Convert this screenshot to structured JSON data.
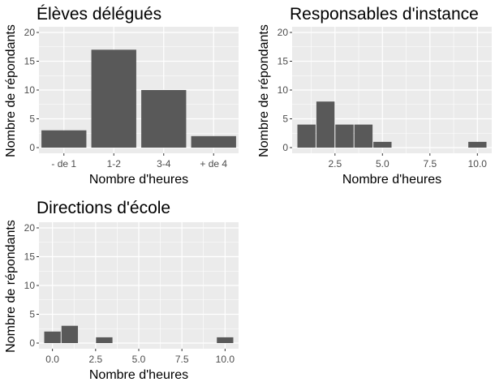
{
  "figure": {
    "panel_background": "#ebebeb",
    "gridline_color": "#ffffff",
    "bar_color": "#595959",
    "tick_label_color": "#4d4d4d"
  },
  "chart_data": [
    {
      "type": "bar",
      "title": "Élèves délégués",
      "xlabel": "Nombre d'heures",
      "ylabel": "Nombre de répondants",
      "categories": [
        "- de 1",
        "1-2",
        "3-4",
        "+ de 4"
      ],
      "values": [
        3,
        17,
        10,
        2
      ],
      "ylim": [
        0,
        20
      ],
      "yticks": [
        0,
        5,
        10,
        15,
        20
      ],
      "grid": true
    },
    {
      "type": "bar",
      "title": "Responsables d'instance",
      "xlabel": "Nombre d'heures",
      "ylabel": "Nombre de répondants",
      "bins": [
        {
          "x": 1,
          "count": 4
        },
        {
          "x": 2,
          "count": 8
        },
        {
          "x": 3,
          "count": 4
        },
        {
          "x": 4,
          "count": 4
        },
        {
          "x": 5,
          "count": 1
        },
        {
          "x": 6,
          "count": 0
        },
        {
          "x": 7,
          "count": 0
        },
        {
          "x": 8,
          "count": 0
        },
        {
          "x": 9,
          "count": 0
        },
        {
          "x": 10,
          "count": 1
        }
      ],
      "bin_width": 1,
      "xlim": [
        0.5,
        10.5
      ],
      "xticks": [
        2.5,
        5.0,
        7.5,
        10.0
      ],
      "xtick_labels": [
        "2.5",
        "5.0",
        "7.5",
        "10.0"
      ],
      "ylim": [
        0,
        20
      ],
      "yticks": [
        0,
        5,
        10,
        15,
        20
      ],
      "grid": true
    },
    {
      "type": "bar",
      "title": "Directions d'école",
      "xlabel": "Nombre d'heures",
      "ylabel": "Nombre de répondants",
      "bins": [
        {
          "x": 0,
          "count": 2
        },
        {
          "x": 1,
          "count": 3
        },
        {
          "x": 2,
          "count": 0
        },
        {
          "x": 3,
          "count": 1
        },
        {
          "x": 4,
          "count": 0
        },
        {
          "x": 5,
          "count": 0
        },
        {
          "x": 6,
          "count": 0
        },
        {
          "x": 7,
          "count": 0
        },
        {
          "x": 8,
          "count": 0
        },
        {
          "x": 9,
          "count": 0
        },
        {
          "x": 10,
          "count": 1
        }
      ],
      "bin_width": 1,
      "xlim": [
        -0.5,
        10.5
      ],
      "xticks": [
        0,
        2.5,
        5.0,
        7.5,
        10.0
      ],
      "xtick_labels": [
        "0.0",
        "2.5",
        "5.0",
        "7.5",
        "10.0"
      ],
      "ylim": [
        0,
        20
      ],
      "yticks": [
        0,
        5,
        10,
        15,
        20
      ],
      "grid": true
    }
  ]
}
